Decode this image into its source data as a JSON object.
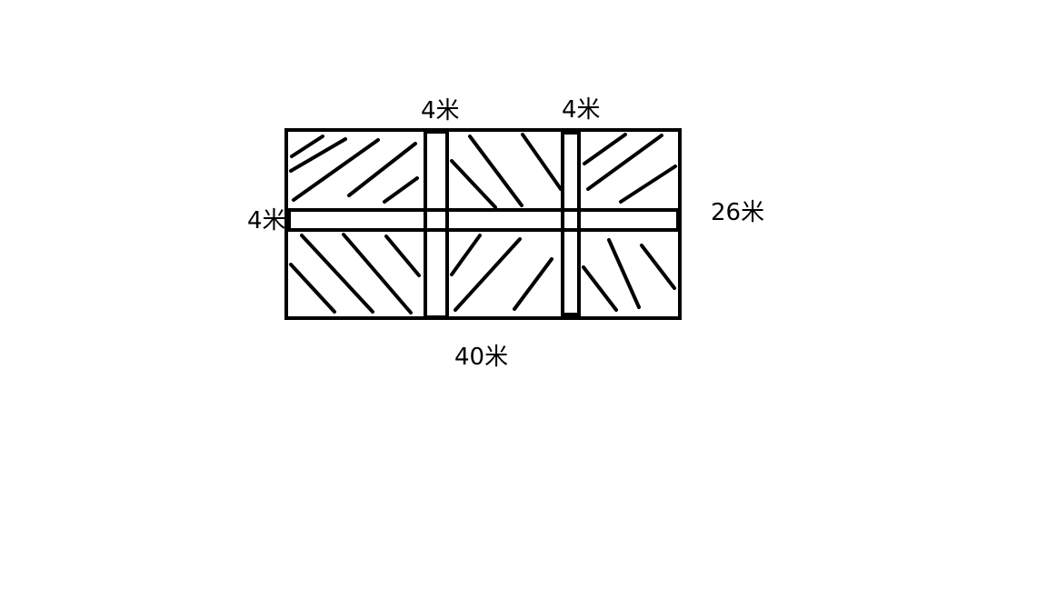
{
  "labels": {
    "road_width_vertical_1": "4米",
    "road_width_vertical_2": "4米",
    "road_width_horizontal": "4米",
    "field_width": "26米",
    "field_length": "40米"
  },
  "colors": {
    "stroke": "#000000",
    "background": "#ffffff"
  }
}
